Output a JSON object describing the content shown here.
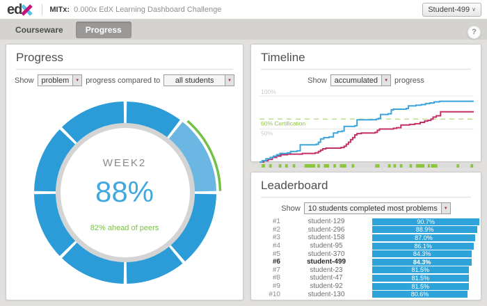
{
  "header": {
    "logo_ed": "ed",
    "course_prefix": "MITx:",
    "course_title": "0.000x EdX Learning Dashboard Challenge",
    "user_button": "Student-499",
    "user_caret": "∨"
  },
  "tabs": [
    {
      "label": "Courseware",
      "active": false
    },
    {
      "label": "Progress",
      "active": true
    }
  ],
  "help_label": "?",
  "progress_panel": {
    "title": "Progress",
    "show_label": "Show",
    "metric_value": "problem",
    "compare_label": "progress compared to",
    "compare_value": "all students"
  },
  "timeline_panel": {
    "title": "Timeline",
    "show_label": "Show",
    "mode_value": "accumulated",
    "suffix_label": "progress"
  },
  "leaderboard_panel": {
    "title": "Leaderboard",
    "show_label": "Show",
    "filter_value": "10 students completed most problems"
  },
  "chart_data": [
    {
      "type": "donut",
      "center_label": "WEEK2",
      "center_value": "88%",
      "center_note": "82% ahead of peers",
      "segments": [
        {
          "a0": 0,
          "a1": 38,
          "state": "normal"
        },
        {
          "a0": 38,
          "a1": 90,
          "state": "highlight"
        },
        {
          "a0": 90,
          "a1": 140,
          "state": "normal"
        },
        {
          "a0": 140,
          "a1": 180,
          "state": "normal"
        },
        {
          "a0": 180,
          "a1": 225,
          "state": "normal"
        },
        {
          "a0": 225,
          "a1": 270,
          "state": "normal"
        },
        {
          "a0": 270,
          "a1": 315,
          "state": "normal"
        },
        {
          "a0": 315,
          "a1": 360,
          "state": "normal"
        }
      ],
      "marker_arc": {
        "a0": 41,
        "a1": 89
      },
      "colors": {
        "normal": "#2B9CD8",
        "highlight": "#6AB7E4",
        "marker": "#72C045",
        "track": "#D4D4D4",
        "value": "#41A8DF",
        "note": "#7AC143",
        "label": "#8A8A8A"
      }
    },
    {
      "type": "line",
      "mode": "step",
      "ylim": [
        0,
        100
      ],
      "gridlines": [
        100,
        50
      ],
      "gridline_labels": [
        "100%",
        "50%"
      ],
      "threshold": {
        "value": 60,
        "label": "60% Certification",
        "color": "#BBDE8F",
        "label_color": "#8CC63F"
      },
      "series": [
        {
          "id": "accumulated-progress-blue",
          "color": "#3AA5DC",
          "points": [
            [
              0,
              0
            ],
            [
              0.012,
              2
            ],
            [
              0.03,
              5
            ],
            [
              0.05,
              7
            ],
            [
              0.065,
              9
            ],
            [
              0.08,
              11
            ],
            [
              0.095,
              13
            ],
            [
              0.13,
              14
            ],
            [
              0.145,
              16
            ],
            [
              0.175,
              17
            ],
            [
              0.19,
              26
            ],
            [
              0.265,
              27
            ],
            [
              0.275,
              30
            ],
            [
              0.285,
              35
            ],
            [
              0.3,
              37
            ],
            [
              0.325,
              38
            ],
            [
              0.345,
              44
            ],
            [
              0.365,
              46
            ],
            [
              0.385,
              47
            ],
            [
              0.395,
              54
            ],
            [
              0.445,
              55
            ],
            [
              0.455,
              64
            ],
            [
              0.545,
              65
            ],
            [
              0.555,
              66
            ],
            [
              0.565,
              72
            ],
            [
              0.6,
              73
            ],
            [
              0.615,
              79
            ],
            [
              0.625,
              80
            ],
            [
              0.685,
              81
            ],
            [
              0.695,
              85
            ],
            [
              0.73,
              86
            ],
            [
              0.755,
              87
            ],
            [
              0.775,
              88.5
            ],
            [
              0.795,
              89.5
            ],
            [
              0.815,
              91
            ],
            [
              0.84,
              92
            ],
            [
              1,
              92
            ]
          ]
        },
        {
          "id": "accumulated-progress-pink",
          "color": "#C52F67",
          "points": [
            [
              0,
              0
            ],
            [
              0.02,
              2
            ],
            [
              0.04,
              4
            ],
            [
              0.06,
              7
            ],
            [
              0.08,
              9
            ],
            [
              0.1,
              11
            ],
            [
              0.13,
              12
            ],
            [
              0.2,
              13
            ],
            [
              0.26,
              14
            ],
            [
              0.275,
              16
            ],
            [
              0.285,
              18
            ],
            [
              0.295,
              20
            ],
            [
              0.31,
              21
            ],
            [
              0.38,
              22
            ],
            [
              0.395,
              24
            ],
            [
              0.405,
              27
            ],
            [
              0.415,
              30
            ],
            [
              0.425,
              34
            ],
            [
              0.435,
              37
            ],
            [
              0.445,
              41
            ],
            [
              0.455,
              43
            ],
            [
              0.475,
              44
            ],
            [
              0.54,
              45
            ],
            [
              0.55,
              48
            ],
            [
              0.56,
              50
            ],
            [
              0.625,
              51
            ],
            [
              0.64,
              52
            ],
            [
              0.66,
              56
            ],
            [
              0.7,
              57
            ],
            [
              0.725,
              58
            ],
            [
              0.75,
              60
            ],
            [
              0.77,
              62
            ],
            [
              0.785,
              63
            ],
            [
              0.8,
              65
            ],
            [
              0.81,
              68
            ],
            [
              0.825,
              70
            ],
            [
              0.845,
              76
            ],
            [
              1,
              76
            ]
          ]
        }
      ],
      "activity_track_color": "#DBDBDB",
      "activity_marker_color": "#8CC63F",
      "activity_markers": [
        [
          0.01,
          0.015
        ],
        [
          0.045,
          0.012
        ],
        [
          0.09,
          0.012
        ],
        [
          0.12,
          0.012
        ],
        [
          0.155,
          0.012
        ],
        [
          0.21,
          0.05
        ],
        [
          0.27,
          0.012
        ],
        [
          0.3,
          0.025
        ],
        [
          0.345,
          0.012
        ],
        [
          0.375,
          0.03
        ],
        [
          0.43,
          0.012
        ],
        [
          0.54,
          0.02
        ],
        [
          0.6,
          0.012
        ],
        [
          0.625,
          0.012
        ],
        [
          0.655,
          0.012
        ],
        [
          0.7,
          0.012
        ],
        [
          0.73,
          0.04
        ],
        [
          0.785,
          0.01
        ],
        [
          0.8,
          0.03
        ],
        [
          0.92,
          0.012
        ],
        [
          0.985,
          0.012
        ]
      ],
      "grid_color": "#E8E8E8",
      "grid_label_color": "#C9C9C9"
    },
    {
      "type": "bar",
      "orientation": "horizontal",
      "ranks": [
        "#1",
        "#2",
        "#3",
        "#4",
        "#5",
        "#6",
        "#7",
        "#8",
        "#9",
        "#10"
      ],
      "categories": [
        "student-129",
        "student-296",
        "student-158",
        "student-95",
        "student-370",
        "student-499",
        "student-23",
        "student-47",
        "student-92",
        "student-130"
      ],
      "values": [
        90.7,
        88.9,
        87.0,
        86.1,
        84.3,
        84.3,
        81.5,
        81.5,
        81.5,
        80.6
      ],
      "labels": [
        "90.7%",
        "88.9%",
        "87.0%",
        "86.1%",
        "84.3%",
        "84.3%",
        "81.5%",
        "81.5%",
        "81.5%",
        "80.6%"
      ],
      "highlight_index": 5,
      "bar_color": "#2EA3D9"
    }
  ]
}
